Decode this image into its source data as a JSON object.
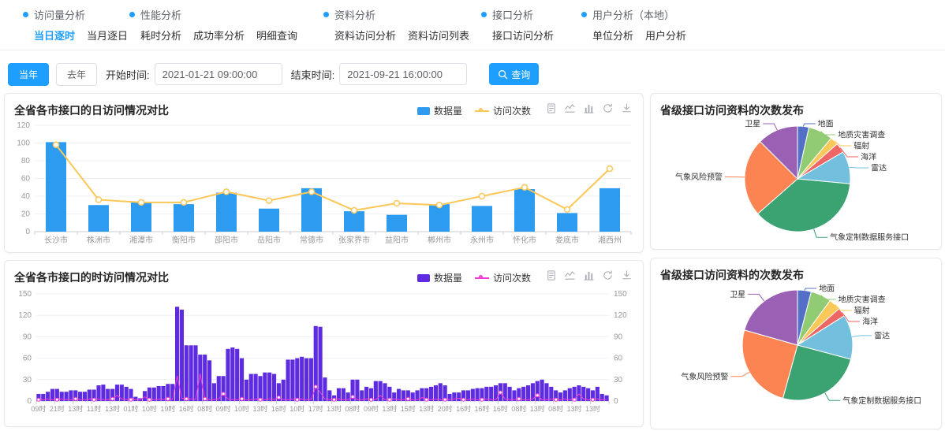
{
  "colors": {
    "primary": "#1e9fff"
  },
  "nav": {
    "groups": [
      {
        "title": "访问量分析",
        "items": [
          {
            "label": "当日逐时",
            "active": true
          },
          {
            "label": "当月逐日",
            "active": false
          }
        ]
      },
      {
        "title": "性能分析",
        "items": [
          {
            "label": "耗时分析",
            "active": false
          },
          {
            "label": "成功率分析",
            "active": false
          },
          {
            "label": "明细查询",
            "active": false
          }
        ]
      },
      {
        "title": "资料分析",
        "items": [
          {
            "label": "资料访问分析",
            "active": false
          },
          {
            "label": "资料访问列表",
            "active": false
          }
        ]
      },
      {
        "title": "接口分析",
        "items": [
          {
            "label": "接口访问分析",
            "active": false
          }
        ]
      },
      {
        "title": "用户分析（本地）",
        "items": [
          {
            "label": "单位分析",
            "active": false
          },
          {
            "label": "用户分析",
            "active": false
          }
        ]
      }
    ]
  },
  "filters": {
    "this_year_label": "当年",
    "last_year_label": "去年",
    "start_label": "开始时间:",
    "start_value": "2021-01-21 09:00:00",
    "end_label": "结束时间:",
    "end_value": "2021-09-21 16:00:00",
    "search_label": "查询",
    "search_icon": "magnifier"
  },
  "toolbox_icons": [
    "data-view",
    "line-chart",
    "bar-chart",
    "restore",
    "download"
  ],
  "chart_data": [
    {
      "type": "bar",
      "variant": "daily",
      "title": "全省各市接口的日访问情况对比",
      "categories": [
        "长沙市",
        "株洲市",
        "湘潭市",
        "衡阳市",
        "邵阳市",
        "岳阳市",
        "常德市",
        "张家界市",
        "益阳市",
        "郴州市",
        "永州市",
        "怀化市",
        "娄底市",
        "湘西州"
      ],
      "series": [
        {
          "name": "数据量",
          "type": "bar",
          "color": "#2d9cf0",
          "values": [
            101,
            30,
            33,
            31,
            44,
            26,
            49,
            23,
            19,
            31,
            29,
            48,
            21,
            49
          ]
        },
        {
          "name": "访问次数",
          "type": "line",
          "color": "#fbc757",
          "values": [
            98,
            36,
            33,
            33,
            45,
            35,
            45,
            24,
            32,
            30,
            40,
            50,
            25,
            71
          ]
        }
      ],
      "ylim": [
        0,
        120
      ],
      "yticks": [
        0,
        20,
        40,
        60,
        80,
        100,
        120
      ],
      "grid": true,
      "legend_position": "top-right"
    },
    {
      "type": "bar",
      "variant": "hourly",
      "title": "全省各市接口的时访问情况对比",
      "x_labels": [
        "09时",
        "21时",
        "13时",
        "11时",
        "13时",
        "01时",
        "10时",
        "19时",
        "16时",
        "08时",
        "09时",
        "10时",
        "13时",
        "16时",
        "10时",
        "17时",
        "13时",
        "08时",
        "09时",
        "13时",
        "15时",
        "13时",
        "20时",
        "16时",
        "16时",
        "16时",
        "08时",
        "13时",
        "08时",
        "13时",
        "13时"
      ],
      "label_every": 4,
      "series": [
        {
          "name": "数据量",
          "type": "bar",
          "color": "#5e2be0",
          "values": [
            10,
            10,
            13,
            17,
            17,
            13,
            13,
            15,
            15,
            13,
            13,
            16,
            16,
            22,
            23,
            17,
            17,
            23,
            23,
            20,
            17,
            6,
            4,
            14,
            19,
            19,
            21,
            21,
            24,
            24,
            132,
            128,
            78,
            78,
            78,
            65,
            65,
            57,
            25,
            35,
            35,
            73,
            75,
            73,
            60,
            30,
            38,
            38,
            35,
            40,
            40,
            38,
            25,
            30,
            58,
            58,
            60,
            62,
            60,
            60,
            105,
            104,
            33,
            15,
            8,
            18,
            18,
            12,
            30,
            30,
            15,
            20,
            18,
            28,
            28,
            25,
            20,
            12,
            17,
            15,
            15,
            12,
            15,
            18,
            18,
            20,
            22,
            25,
            22,
            10,
            12,
            12,
            15,
            15,
            17,
            18,
            18,
            20,
            20,
            22,
            25,
            25,
            20,
            15,
            18,
            20,
            22,
            25,
            28,
            30,
            25,
            20,
            15,
            12,
            15,
            18,
            20,
            22,
            20,
            18,
            15,
            20,
            10,
            8
          ]
        },
        {
          "name": "访问次数",
          "type": "line",
          "color": "#f53bd5",
          "values": [
            2,
            2,
            3,
            2,
            2,
            3,
            2,
            2,
            3,
            2,
            2,
            3,
            2,
            3,
            2,
            2,
            3,
            8,
            3,
            2,
            2,
            2,
            2,
            6,
            2,
            2,
            3,
            2,
            3,
            2,
            35,
            4,
            3,
            3,
            2,
            38,
            3,
            2,
            2,
            3,
            10,
            3,
            2,
            2,
            3,
            2,
            2,
            3,
            2,
            2,
            3,
            2,
            5,
            2,
            2,
            3,
            2,
            3,
            2,
            2,
            20,
            12,
            3,
            2,
            2,
            3,
            2,
            2,
            6,
            2,
            2,
            3,
            2,
            2,
            8,
            2,
            2,
            3,
            2,
            2,
            3,
            2,
            2,
            5,
            2,
            2,
            3,
            2,
            2,
            2,
            3,
            4,
            2,
            2,
            3,
            2,
            2,
            3,
            2,
            2,
            12,
            3,
            2,
            2,
            3,
            2,
            2,
            3,
            8,
            2,
            2,
            3,
            2,
            2,
            3,
            2,
            2,
            10,
            3,
            2,
            2,
            3,
            2,
            2
          ]
        }
      ],
      "ylim": [
        0,
        150
      ],
      "yticks": [
        0,
        30,
        60,
        90,
        120,
        150
      ],
      "dual_axis": true,
      "grid": true,
      "legend_position": "top-right"
    },
    {
      "type": "pie",
      "title": "省级接口访问资料的次数发布",
      "slices": [
        {
          "label": "地面",
          "value": 3.5,
          "color": "#5470c6"
        },
        {
          "label": "地质灾害调查",
          "value": 7.5,
          "color": "#91cc75"
        },
        {
          "label": "辐射",
          "value": 2.5,
          "color": "#fac858"
        },
        {
          "label": "海洋",
          "value": 3,
          "color": "#ee6666"
        },
        {
          "label": "雷达",
          "value": 10,
          "color": "#73c0de"
        },
        {
          "label": "气象定制数据服务接口",
          "value": 37,
          "color": "#3ba272"
        },
        {
          "label": "气象风险预警",
          "value": 24,
          "color": "#fc8452"
        },
        {
          "label": "卫星",
          "value": 12.5,
          "color": "#9a60b4"
        }
      ]
    },
    {
      "type": "pie",
      "title": "省级接口访问资料的次数发布",
      "slices": [
        {
          "label": "地面",
          "value": 4,
          "color": "#5470c6"
        },
        {
          "label": "地质灾害调查",
          "value": 6,
          "color": "#91cc75"
        },
        {
          "label": "辐射",
          "value": 3.5,
          "color": "#fac858"
        },
        {
          "label": "海洋",
          "value": 2.5,
          "color": "#ee6666"
        },
        {
          "label": "雷达",
          "value": 13,
          "color": "#73c0de"
        },
        {
          "label": "气象定制数据服务接口",
          "value": 25,
          "color": "#3ba272"
        },
        {
          "label": "气象风险预警",
          "value": 25,
          "color": "#fc8452"
        },
        {
          "label": "卫星",
          "value": 20.5,
          "color": "#9a60b4"
        }
      ]
    }
  ]
}
